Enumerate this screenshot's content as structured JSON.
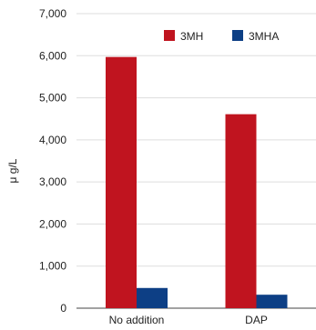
{
  "chart_data": {
    "type": "bar",
    "title": "",
    "xlabel": "",
    "ylabel": "μ g/L",
    "categories": [
      "No addition",
      "DAP"
    ],
    "series": [
      {
        "name": "3MH",
        "values": [
          5970,
          4610
        ],
        "color": "#c0141f"
      },
      {
        "name": "3MHA",
        "values": [
          480,
          320
        ],
        "color": "#0d3f85"
      }
    ],
    "ylim": [
      0,
      7000
    ],
    "yticks": [
      0,
      1000,
      2000,
      3000,
      4000,
      5000,
      6000,
      7000
    ],
    "ytick_labels": [
      "0",
      "1,000",
      "2,000",
      "3,000",
      "4,000",
      "5,000",
      "6,000",
      "7,000"
    ],
    "grid": "horizontal",
    "legend": "top-right"
  }
}
